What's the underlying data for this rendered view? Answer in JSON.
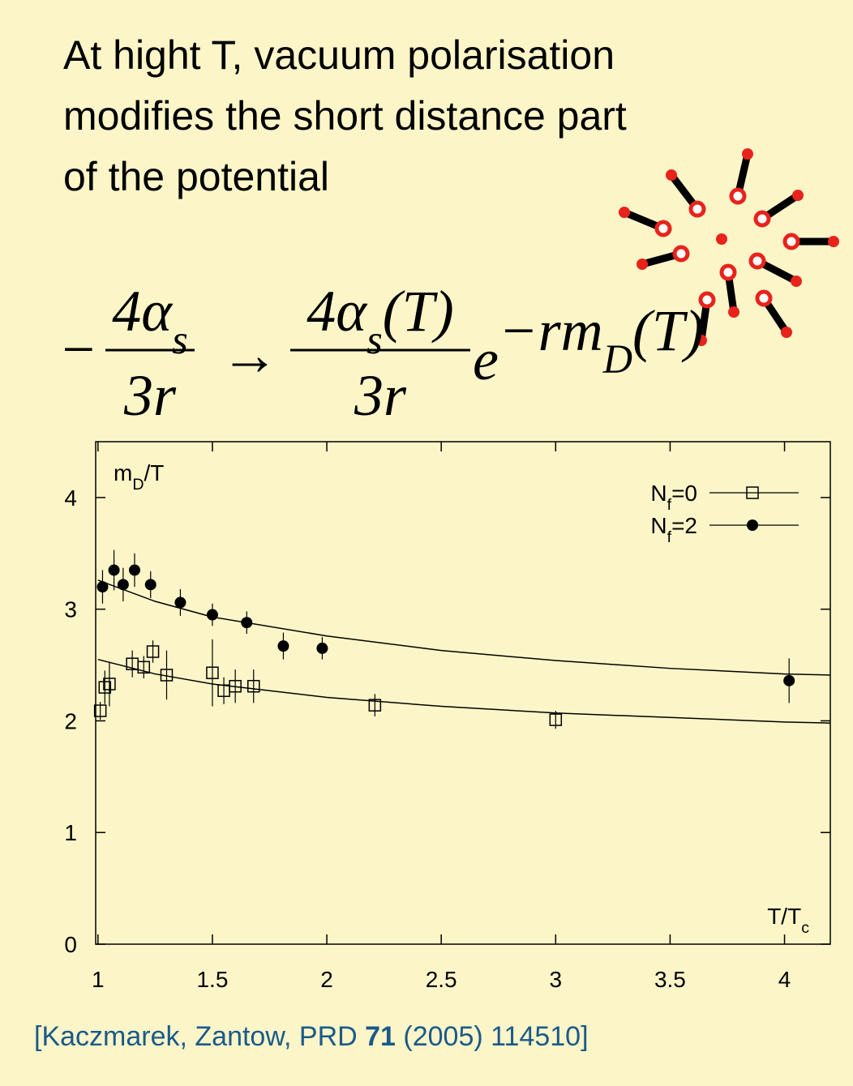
{
  "heading": [
    "At hight T, vacuum polarisation",
    "modifies the short distance part",
    "of the potential"
  ],
  "formula": {
    "lhs": {
      "sign": "−",
      "num": [
        "4α",
        "s"
      ],
      "den": "3r"
    },
    "arrow": "→",
    "rhs": {
      "num": [
        "4α",
        "s",
        "(T)"
      ],
      "den": "3r",
      "base": "e",
      "exp": [
        "−rm",
        "D",
        "(T)"
      ]
    }
  },
  "chart_data": {
    "type": "scatter",
    "y_label": [
      "m",
      "D",
      "/T"
    ],
    "x_label": [
      "T/T",
      "c"
    ],
    "xlim": [
      0.99,
      4.2
    ],
    "ylim": [
      0,
      4.5
    ],
    "xticks": [
      1,
      1.5,
      2,
      2.5,
      3,
      3.5,
      4
    ],
    "yticks": [
      0,
      1,
      2,
      3,
      4
    ],
    "legend": "upper right",
    "series": [
      {
        "name": [
          "N",
          "f",
          "=0"
        ],
        "color": "#000000",
        "marker": "open-square",
        "x": [
          1.01,
          1.03,
          1.05,
          1.15,
          1.2,
          1.24,
          1.3,
          1.5,
          1.55,
          1.6,
          1.68,
          2.21,
          3.0
        ],
        "values": [
          2.09,
          2.3,
          2.33,
          2.51,
          2.48,
          2.62,
          2.41,
          2.43,
          2.27,
          2.31,
          2.31,
          2.14,
          2.01
        ],
        "errors": [
          0.08,
          0.15,
          0.2,
          0.12,
          0.1,
          0.1,
          0.22,
          0.3,
          0.12,
          0.15,
          0.15,
          0.1,
          0.08
        ],
        "fit": {
          "x": [
            1,
            1.25,
            1.5,
            2,
            2.5,
            3,
            3.5,
            4,
            4.2
          ],
          "values": [
            2.55,
            2.42,
            2.33,
            2.21,
            2.13,
            2.07,
            2.03,
            1.99,
            1.98
          ]
        }
      },
      {
        "name": [
          "N",
          "f",
          "=2"
        ],
        "color": "#000000",
        "marker": "filled-circle",
        "x": [
          1.02,
          1.07,
          1.11,
          1.16,
          1.23,
          1.36,
          1.5,
          1.65,
          1.81,
          1.98,
          4.02
        ],
        "values": [
          3.2,
          3.35,
          3.22,
          3.35,
          3.22,
          3.06,
          2.95,
          2.88,
          2.67,
          2.65,
          2.36
        ],
        "errors": [
          0.15,
          0.18,
          0.15,
          0.15,
          0.12,
          0.12,
          0.1,
          0.1,
          0.12,
          0.1,
          0.2
        ],
        "fit": {
          "x": [
            1,
            1.25,
            1.5,
            2,
            2.5,
            3,
            3.5,
            4,
            4.2
          ],
          "values": [
            3.26,
            3.07,
            2.93,
            2.76,
            2.63,
            2.54,
            2.47,
            2.42,
            2.41
          ]
        }
      }
    ]
  },
  "citation": [
    "[Kaczmarek, Zantow, PRD ",
    "71",
    " (2005) 114510]"
  ]
}
